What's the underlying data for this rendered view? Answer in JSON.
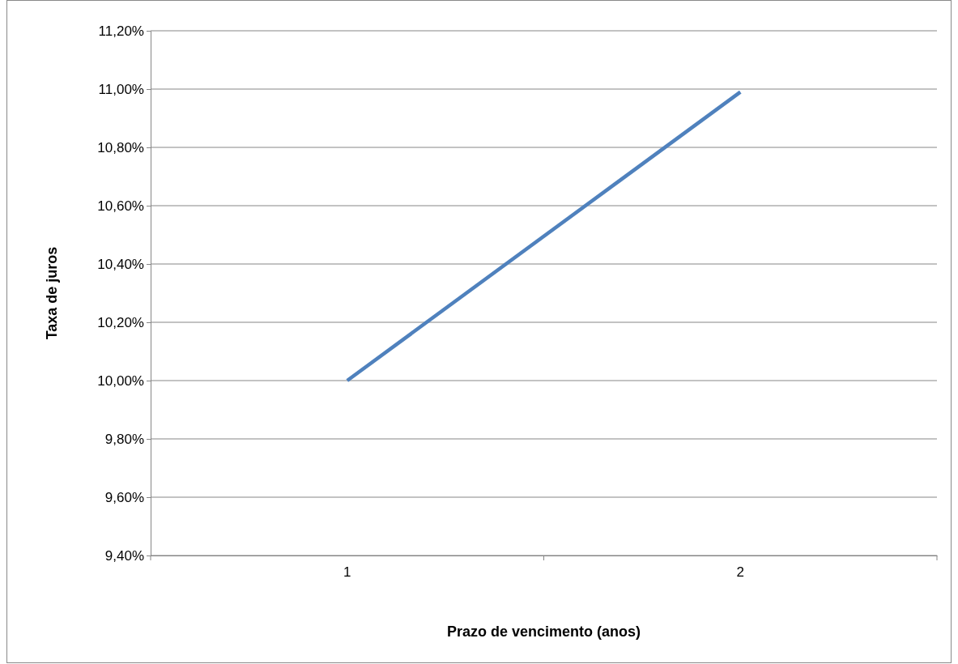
{
  "chart_data": {
    "type": "line",
    "xlabel": "Prazo de vencimento (anos)",
    "ylabel": "Taxa de juros",
    "categories": [
      "1",
      "2"
    ],
    "series": [
      {
        "color": "#4f81bd",
        "values": [
          10.0,
          10.99
        ]
      }
    ],
    "ylim": [
      9.4,
      11.2
    ],
    "yticks": [
      {
        "value": 9.4,
        "label": "9,40%"
      },
      {
        "value": 9.6,
        "label": "9,60%"
      },
      {
        "value": 9.8,
        "label": "9,80%"
      },
      {
        "value": 10.0,
        "label": "10,00%"
      },
      {
        "value": 10.2,
        "label": "10,20%"
      },
      {
        "value": 10.4,
        "label": "10,40%"
      },
      {
        "value": 10.6,
        "label": "10,60%"
      },
      {
        "value": 10.8,
        "label": "10,80%"
      },
      {
        "value": 11.0,
        "label": "11,00%"
      },
      {
        "value": 11.2,
        "label": "11,20%"
      }
    ],
    "grid": "y",
    "marker": "none",
    "line_style": "solid"
  }
}
